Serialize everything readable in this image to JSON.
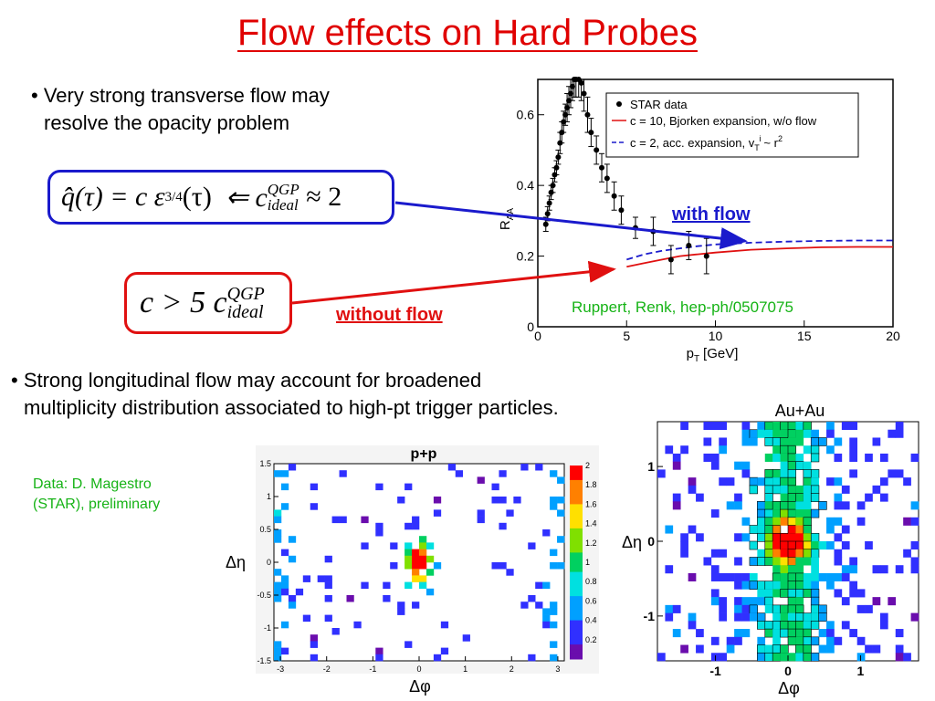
{
  "title": "Flow effects on Hard Probes",
  "bullet1": {
    "line1": "• Very strong transverse flow may",
    "line2": "resolve the opacity problem"
  },
  "bullet2": {
    "line1": "• Strong longitudinal flow may account for broadened",
    "line2": "multiplicity distribution associated to high-pt trigger particles."
  },
  "equation1": {
    "lhs": "q̂(τ) = c ε",
    "power": "3/4",
    "arg": "(τ)",
    "arrow": "⇐ c",
    "sup": "QGP",
    "sub": "ideal",
    "rhs": "≈ 2"
  },
  "equation2": {
    "lhs": "c > 5 c",
    "sup": "QGP",
    "sub": "ideal"
  },
  "labels": {
    "with_flow": "with flow",
    "without_flow": "without flow",
    "reference": "Ruppert, Renk, hep-ph/0507075",
    "data_credit_1": "Data: D. Magestro",
    "data_credit_2": "(STAR), preliminary"
  },
  "colors": {
    "title": "#e00000",
    "blue": "#1a1acc",
    "red": "#e01010",
    "green": "#16b316"
  },
  "chart_data": [
    {
      "type": "scatter",
      "ylabel_main": "R",
      "ylabel_sub": "AA",
      "xlabel_main": "p",
      "xlabel_sub": "T",
      "xlabel_unit": "[GeV]",
      "xlim": [
        0,
        20
      ],
      "ylim": [
        0,
        0.7
      ],
      "xticks": [
        "0",
        "5",
        "10",
        "15",
        "20"
      ],
      "yticks": [
        "0",
        "0.2",
        "0.4",
        "0.6"
      ],
      "legend_position": "top-right",
      "legend": [
        "STAR data",
        "c = 10, Bjorken expansion, w/o flow",
        "c = 2, acc. expansion, v",
        "T",
        "i",
        "~ r",
        "2"
      ],
      "series": [
        {
          "name": "STAR data",
          "x": [
            0.45,
            0.55,
            0.65,
            0.75,
            0.85,
            0.95,
            1.05,
            1.15,
            1.25,
            1.35,
            1.45,
            1.55,
            1.65,
            1.75,
            1.85,
            1.95,
            2.05,
            2.15,
            2.3,
            2.45,
            2.6,
            2.8,
            3.0,
            3.3,
            3.6,
            3.9,
            4.3,
            4.7,
            5.5,
            6.5,
            7.5,
            8.5,
            9.5
          ],
          "y": [
            0.29,
            0.32,
            0.35,
            0.38,
            0.4,
            0.43,
            0.45,
            0.48,
            0.52,
            0.55,
            0.58,
            0.6,
            0.62,
            0.64,
            0.66,
            0.68,
            0.7,
            0.7,
            0.7,
            0.69,
            0.66,
            0.6,
            0.55,
            0.5,
            0.45,
            0.42,
            0.37,
            0.33,
            0.28,
            0.27,
            0.19,
            0.23,
            0.2
          ],
          "err": [
            0.02,
            0.02,
            0.02,
            0.02,
            0.02,
            0.02,
            0.02,
            0.02,
            0.03,
            0.03,
            0.03,
            0.03,
            0.04,
            0.04,
            0.04,
            0.04,
            0.05,
            0.05,
            0.05,
            0.05,
            0.05,
            0.05,
            0.04,
            0.04,
            0.04,
            0.04,
            0.04,
            0.04,
            0.03,
            0.04,
            0.04,
            0.04,
            0.05
          ]
        },
        {
          "name": "c = 10, Bjorken expansion, w/o flow",
          "x": [
            5,
            6,
            7,
            8,
            9,
            10,
            12,
            14,
            16,
            18,
            20
          ],
          "y": [
            0.17,
            0.18,
            0.19,
            0.2,
            0.205,
            0.21,
            0.218,
            0.222,
            0.225,
            0.226,
            0.226
          ]
        },
        {
          "name": "c = 2, acc. expansion",
          "x": [
            5,
            6,
            7,
            8,
            9,
            10,
            12,
            14,
            16,
            18,
            20
          ],
          "y": [
            0.19,
            0.205,
            0.215,
            0.222,
            0.228,
            0.233,
            0.238,
            0.241,
            0.243,
            0.244,
            0.244
          ]
        }
      ]
    },
    {
      "type": "heatmap",
      "title": "p+p",
      "ylabel": "Δη",
      "xlabel": "Δφ",
      "xticks": [
        "-3",
        "-2",
        "-1",
        "0",
        "1",
        "2",
        "3"
      ],
      "yticks": [
        "1.5",
        "1",
        "0.5",
        "0",
        "-0.5",
        "-1",
        "-1.5"
      ],
      "xlim": [
        -3.14,
        3.14
      ],
      "ylim": [
        -1.5,
        1.5
      ],
      "colorbar_ticks": [
        "2",
        "1.8",
        "1.6",
        "1.4",
        "1.2",
        "1",
        "0.8",
        "0.6",
        "0.4",
        "0.2"
      ],
      "colorbar_range": [
        0,
        2
      ],
      "grid": [
        40,
        30
      ],
      "peak": {
        "x": 0,
        "y": 0,
        "value": 2
      },
      "ridges_at_dphi": [
        -3.14,
        3.14
      ]
    },
    {
      "type": "heatmap",
      "title": "Au+Au",
      "ylabel": "Δη",
      "xlabel": "Δφ",
      "xticks": [
        "-1",
        "0",
        "1"
      ],
      "yticks": [
        "1",
        "0",
        "-1"
      ],
      "xlim": [
        -1.8,
        1.8
      ],
      "ylim": [
        -1.6,
        1.6
      ],
      "grid": [
        34,
        30
      ],
      "peak": {
        "x": 0,
        "y": 0,
        "value": 2
      },
      "ridge_along_deta": true
    }
  ]
}
